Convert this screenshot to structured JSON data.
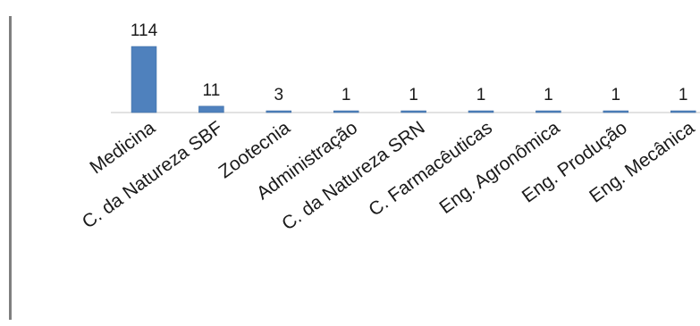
{
  "chart_data": {
    "type": "bar",
    "title": "",
    "xlabel": "",
    "ylabel": "",
    "categories": [
      "Medicina",
      "C. da Natureza SBF",
      "Zootecnia",
      "Administração",
      "C. da Natureza SRN",
      "C. Farmacêuticas",
      "Eng. Agronômica",
      "Eng. Produção",
      "Eng. Mecânica"
    ],
    "values": [
      114,
      11,
      3,
      1,
      1,
      1,
      1,
      1,
      1
    ],
    "ylim": [
      0,
      114
    ],
    "grid": false,
    "legend": "none",
    "data_labels": true,
    "colors": {
      "bar": "#4f81bd",
      "border": "#7f7f7f",
      "axis": "#d9d9d9"
    }
  }
}
